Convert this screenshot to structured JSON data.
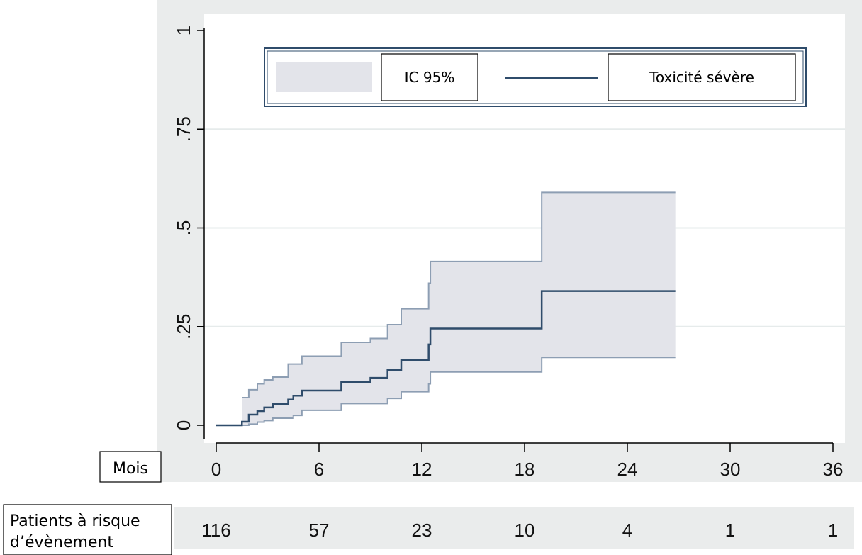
{
  "chart_data": {
    "type": "line",
    "x_label": "Mois",
    "risk_label_line1": "Patients à risque",
    "risk_label_line2": "d’évènement",
    "xlim": [
      -1.5,
      37
    ],
    "ylim": [
      -0.05,
      1.03
    ],
    "x_ticks": [
      0,
      6,
      12,
      18,
      24,
      30,
      36
    ],
    "y_ticks": [
      {
        "value": 0,
        "label": "0"
      },
      {
        "value": 0.25,
        "label": ".25"
      },
      {
        "value": 0.5,
        "label": ".5"
      },
      {
        "value": 0.75,
        "label": ".75"
      },
      {
        "value": 1,
        "label": "1"
      }
    ],
    "grid": true,
    "legend": {
      "position": "top",
      "entries": [
        {
          "label": "IC 95%",
          "kind": "band"
        },
        {
          "label": "Toxicité sévère",
          "kind": "line"
        }
      ]
    },
    "series": [
      {
        "name": "Toxicité sévère",
        "color": "#2f4c6b",
        "points": [
          [
            0,
            0
          ],
          [
            1.5,
            0
          ],
          [
            1.5,
            0.009
          ],
          [
            1.9,
            0.009
          ],
          [
            1.9,
            0.027
          ],
          [
            2.4,
            0.027
          ],
          [
            2.4,
            0.036
          ],
          [
            2.8,
            0.036
          ],
          [
            2.8,
            0.045
          ],
          [
            3.3,
            0.045
          ],
          [
            3.3,
            0.054
          ],
          [
            4.2,
            0.054
          ],
          [
            4.2,
            0.065
          ],
          [
            4.5,
            0.065
          ],
          [
            4.5,
            0.075
          ],
          [
            5,
            0.075
          ],
          [
            5,
            0.088
          ],
          [
            7.3,
            0.088
          ],
          [
            7.3,
            0.11
          ],
          [
            9,
            0.11
          ],
          [
            9,
            0.12
          ],
          [
            10,
            0.12
          ],
          [
            10,
            0.14
          ],
          [
            10.8,
            0.14
          ],
          [
            10.8,
            0.165
          ],
          [
            12.4,
            0.165
          ],
          [
            12.4,
            0.205
          ],
          [
            12.5,
            0.205
          ],
          [
            12.5,
            0.245
          ],
          [
            19,
            0.245
          ],
          [
            19,
            0.34
          ],
          [
            26.8,
            0.34
          ]
        ]
      },
      {
        "name": "IC 95%",
        "color": "#e3e4ea",
        "upper": [
          [
            1.5,
            0.07
          ],
          [
            1.9,
            0.07
          ],
          [
            1.9,
            0.09
          ],
          [
            2.4,
            0.09
          ],
          [
            2.4,
            0.105
          ],
          [
            2.8,
            0.105
          ],
          [
            2.8,
            0.115
          ],
          [
            3.3,
            0.115
          ],
          [
            3.3,
            0.122
          ],
          [
            4.2,
            0.122
          ],
          [
            4.2,
            0.155
          ],
          [
            5,
            0.155
          ],
          [
            5,
            0.175
          ],
          [
            7.3,
            0.175
          ],
          [
            7.3,
            0.21
          ],
          [
            9,
            0.21
          ],
          [
            9,
            0.22
          ],
          [
            10,
            0.22
          ],
          [
            10,
            0.255
          ],
          [
            10.8,
            0.255
          ],
          [
            10.8,
            0.295
          ],
          [
            12.4,
            0.295
          ],
          [
            12.4,
            0.36
          ],
          [
            12.5,
            0.36
          ],
          [
            12.5,
            0.415
          ],
          [
            19,
            0.415
          ],
          [
            19,
            0.59
          ],
          [
            26.8,
            0.59
          ]
        ],
        "lower": [
          [
            1.5,
            0
          ],
          [
            1.9,
            0
          ],
          [
            1.9,
            0.003
          ],
          [
            2.4,
            0.003
          ],
          [
            2.4,
            0.008
          ],
          [
            2.8,
            0.008
          ],
          [
            2.8,
            0.012
          ],
          [
            3.3,
            0.012
          ],
          [
            3.3,
            0.018
          ],
          [
            4.5,
            0.018
          ],
          [
            4.5,
            0.025
          ],
          [
            5,
            0.025
          ],
          [
            5,
            0.038
          ],
          [
            7.3,
            0.038
          ],
          [
            7.3,
            0.055
          ],
          [
            10,
            0.055
          ],
          [
            10,
            0.068
          ],
          [
            10.8,
            0.068
          ],
          [
            10.8,
            0.085
          ],
          [
            12.4,
            0.085
          ],
          [
            12.4,
            0.105
          ],
          [
            12.5,
            0.105
          ],
          [
            12.5,
            0.135
          ],
          [
            19,
            0.135
          ],
          [
            19,
            0.172
          ],
          [
            26.8,
            0.172
          ]
        ]
      }
    ],
    "patients_at_risk": [
      {
        "x": 0,
        "value": "116"
      },
      {
        "x": 6,
        "value": "57"
      },
      {
        "x": 12,
        "value": "23"
      },
      {
        "x": 18,
        "value": "10"
      },
      {
        "x": 24,
        "value": "4"
      },
      {
        "x": 30,
        "value": "1"
      },
      {
        "x": 36,
        "value": "1"
      }
    ]
  }
}
